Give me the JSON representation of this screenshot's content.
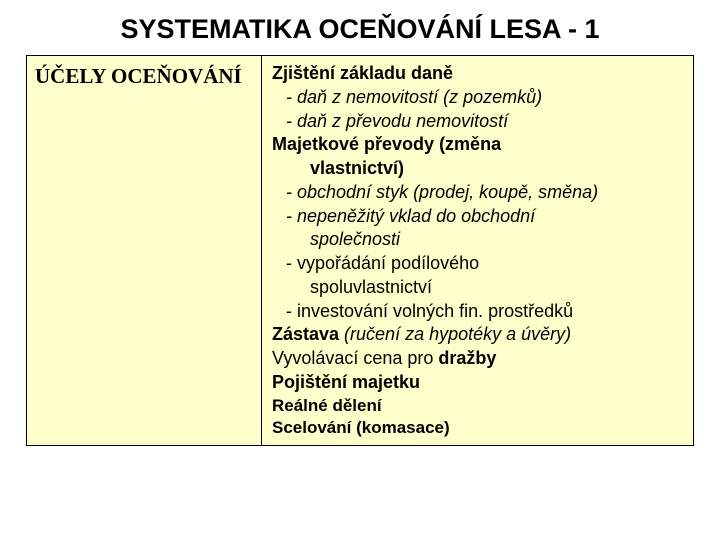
{
  "colors": {
    "background": "#ffffff",
    "table_bg": "#ffffcc",
    "border": "#000000",
    "text": "#000000"
  },
  "title": "SYSTEMATIKA OCEŇOVÁNÍ LESA - 1",
  "left": {
    "heading": "ÚČELY OCEŇOVÁNÍ"
  },
  "right": {
    "l1_b": "Zjištění základu daně",
    "l2": "-   daň z nemovitostí (z pozemků)",
    "l3": "-   daň z převodu nemovitostí",
    "l4_b1": "Majetkové převody ",
    "l4_b2": "(změna",
    "l5_b": "vlastnictví)",
    "l6": "-  obchodní styk (prodej, koupě, směna)",
    "l7": "-  nepeněžitý vklad do obchodní",
    "l8": "společnosti",
    "l9": "-   vypořádání podílového",
    "l10": "spoluvlastnictví",
    "l11": "-   investování volných fin. prostředků",
    "l12_b": "Zástava ",
    "l12_i": "(ručení za hypotéky a  úvěry)",
    "l13_a": "Vyvolávací cena pro ",
    "l13_b": "dražby",
    "l14_b": "Pojištění majetku",
    "l15_b": "Reálné dělení",
    "l16_b": "Scelování (komasace)"
  }
}
